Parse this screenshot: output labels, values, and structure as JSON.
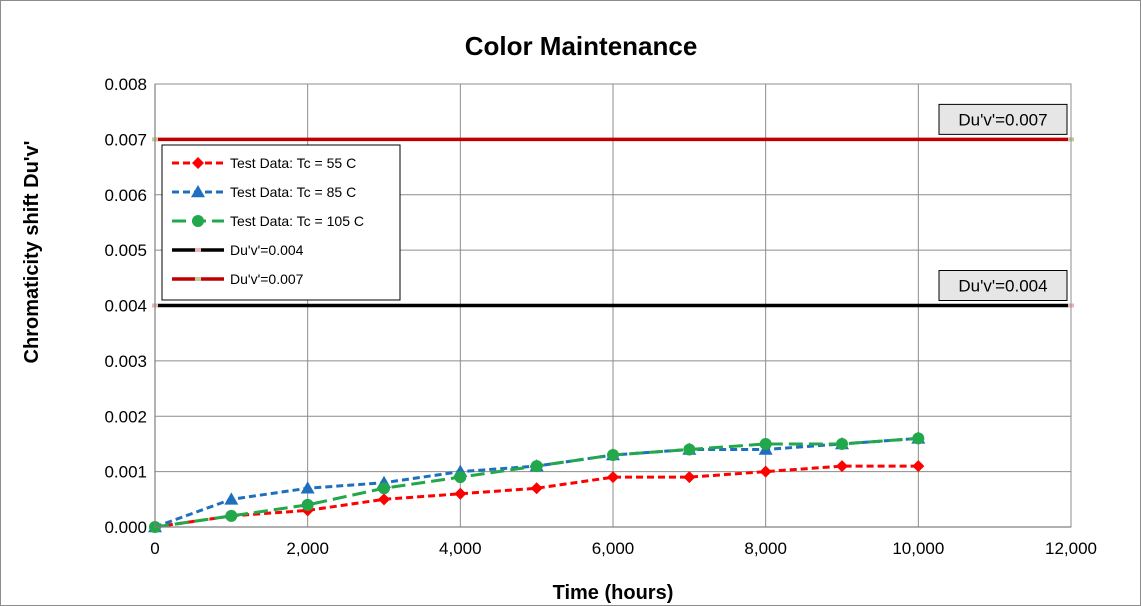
{
  "chart_data": {
    "type": "line",
    "title": "Color Maintenance",
    "xlabel": "Time (hours)",
    "ylabel": "Chromaticity shift Du'v'",
    "xlim": [
      0,
      12000
    ],
    "ylim": [
      0,
      0.008
    ],
    "x_ticks": [
      "0",
      "2,000",
      "4,000",
      "6,000",
      "8,000",
      "10,000",
      "12,000"
    ],
    "y_ticks": [
      "0.000",
      "0.001",
      "0.002",
      "0.003",
      "0.004",
      "0.005",
      "0.006",
      "0.007",
      "0.008"
    ],
    "grid": true,
    "legend_position": "top-left",
    "series": [
      {
        "name": "Test Data: Tc = 55 C",
        "color": "#ff0000",
        "marker": "diamond",
        "dash": "dashed",
        "x": [
          0,
          1000,
          2000,
          3000,
          4000,
          5000,
          6000,
          7000,
          8000,
          9000,
          10000
        ],
        "values": [
          0.0,
          0.0002,
          0.0003,
          0.0005,
          0.0006,
          0.0007,
          0.0009,
          0.0009,
          0.001,
          0.0011,
          0.0011
        ]
      },
      {
        "name": "Test Data: Tc = 85 C",
        "color": "#1f6fbf",
        "marker": "triangle",
        "dash": "dashed",
        "x": [
          0,
          1000,
          2000,
          3000,
          4000,
          5000,
          6000,
          7000,
          8000,
          9000,
          10000
        ],
        "values": [
          0.0,
          0.0005,
          0.0007,
          0.0008,
          0.001,
          0.0011,
          0.0013,
          0.0014,
          0.0014,
          0.0015,
          0.0016
        ]
      },
      {
        "name": "Test Data: Tc = 105 C",
        "color": "#22a84a",
        "marker": "circle",
        "dash": "longdash",
        "x": [
          0,
          1000,
          2000,
          3000,
          4000,
          5000,
          6000,
          7000,
          8000,
          9000,
          10000
        ],
        "values": [
          0.0,
          0.0002,
          0.0004,
          0.0007,
          0.0009,
          0.0011,
          0.0013,
          0.0014,
          0.0015,
          0.0015,
          0.0016
        ]
      },
      {
        "name": "Du'v'=0.004",
        "color": "#000000",
        "marker": "none",
        "dash": "solid",
        "x": [
          0,
          12000
        ],
        "values": [
          0.004,
          0.004
        ]
      },
      {
        "name": "Du'v'=0.007",
        "color": "#c00000",
        "marker": "none",
        "dash": "solid",
        "x": [
          0,
          12000
        ],
        "values": [
          0.007,
          0.007
        ]
      }
    ],
    "annotations": [
      {
        "text": "Du'v'=0.007",
        "y": 0.007
      },
      {
        "text": "Du'v'=0.004",
        "y": 0.004
      }
    ]
  }
}
